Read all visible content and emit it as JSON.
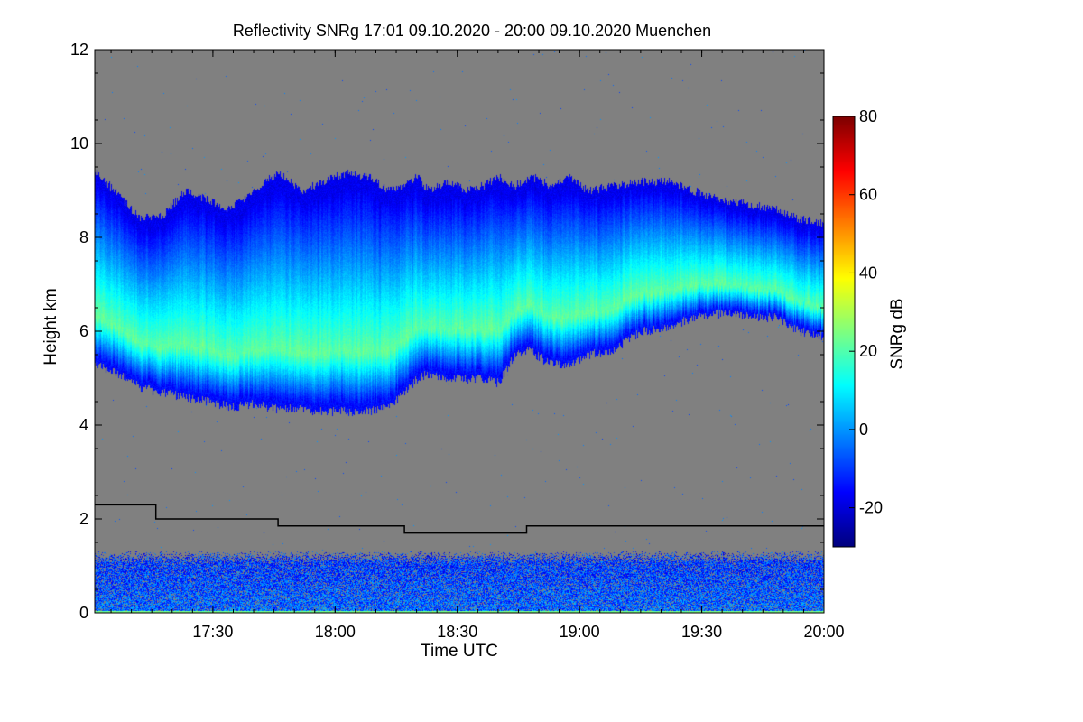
{
  "chart_data": {
    "type": "heatmap",
    "title": "Reflectivity SNRg   17:01 09.10.2020 - 20:00 09.10.2020 Muenchen",
    "xlabel": "Time UTC",
    "ylabel": "Height km",
    "xlim_minutes_utc": [
      1021,
      1200
    ],
    "ylim": [
      0,
      12
    ],
    "x_ticks": [
      {
        "label": "17:30",
        "value": 1050
      },
      {
        "label": "18:00",
        "value": 1080
      },
      {
        "label": "18:30",
        "value": 1110
      },
      {
        "label": "19:00",
        "value": 1140
      },
      {
        "label": "19:30",
        "value": 1170
      },
      {
        "label": "20:00",
        "value": 1200
      }
    ],
    "y_ticks": [
      {
        "label": "0",
        "value": 0
      },
      {
        "label": "2",
        "value": 2
      },
      {
        "label": "4",
        "value": 4
      },
      {
        "label": "6",
        "value": 6
      },
      {
        "label": "8",
        "value": 8
      },
      {
        "label": "10",
        "value": 10
      },
      {
        "label": "12",
        "value": 12
      }
    ],
    "colorbar": {
      "label": "SNRg dB",
      "range": [
        -30,
        80
      ],
      "ticks": [
        {
          "label": "-20",
          "value": -20
        },
        {
          "label": "0",
          "value": 0
        },
        {
          "label": "20",
          "value": 20
        },
        {
          "label": "40",
          "value": 40
        },
        {
          "label": "60",
          "value": 60
        },
        {
          "label": "80",
          "value": 80
        }
      ],
      "colors": [
        "#00007f",
        "#0000ff",
        "#007fff",
        "#00ffff",
        "#7fff7f",
        "#ffff00",
        "#ff7f00",
        "#ff0000",
        "#7f0000"
      ]
    },
    "no_data_color": "#808080",
    "cloud_layer": {
      "time": [
        1021,
        1027,
        1032,
        1038,
        1043,
        1049,
        1054,
        1060,
        1066,
        1072,
        1077,
        1083,
        1088,
        1093,
        1097,
        1100,
        1103,
        1108,
        1112,
        1116,
        1120,
        1124,
        1128,
        1131,
        1133,
        1137,
        1142,
        1148,
        1155,
        1162,
        1168,
        1175,
        1182,
        1188,
        1194,
        1200
      ],
      "top_km": [
        9.4,
        8.9,
        8.4,
        8.5,
        9.0,
        8.8,
        8.6,
        9.0,
        9.4,
        9.0,
        9.2,
        9.4,
        9.3,
        9.0,
        9.1,
        9.3,
        9.0,
        9.2,
        9.0,
        9.1,
        9.3,
        9.1,
        9.3,
        9.2,
        9.1,
        9.3,
        9.0,
        9.1,
        9.2,
        9.2,
        9.0,
        8.8,
        8.7,
        8.6,
        8.4,
        8.3
      ],
      "base_km": [
        5.3,
        5.1,
        4.8,
        4.7,
        4.6,
        4.5,
        4.4,
        4.45,
        4.35,
        4.35,
        4.3,
        4.3,
        4.3,
        4.4,
        4.7,
        5.0,
        5.1,
        5.0,
        5.0,
        5.0,
        4.9,
        5.5,
        5.6,
        5.4,
        5.3,
        5.3,
        5.5,
        5.6,
        6.0,
        6.1,
        6.3,
        6.4,
        6.3,
        6.3,
        6.0,
        5.9
      ],
      "core_snr_db": 22
    },
    "boundary_layer": {
      "top_km": 1.2,
      "mean_snr_db": -5
    },
    "black_line": {
      "points": [
        {
          "time": 1021,
          "height_km": 2.3
        },
        {
          "time": 1036,
          "height_km": 2.3
        },
        {
          "time": 1036,
          "height_km": 2.0
        },
        {
          "time": 1066,
          "height_km": 2.0
        },
        {
          "time": 1066,
          "height_km": 1.85
        },
        {
          "time": 1097,
          "height_km": 1.85
        },
        {
          "time": 1097,
          "height_km": 1.7
        },
        {
          "time": 1127,
          "height_km": 1.7
        },
        {
          "time": 1127,
          "height_km": 1.85
        },
        {
          "time": 1200,
          "height_km": 1.85
        }
      ]
    }
  }
}
